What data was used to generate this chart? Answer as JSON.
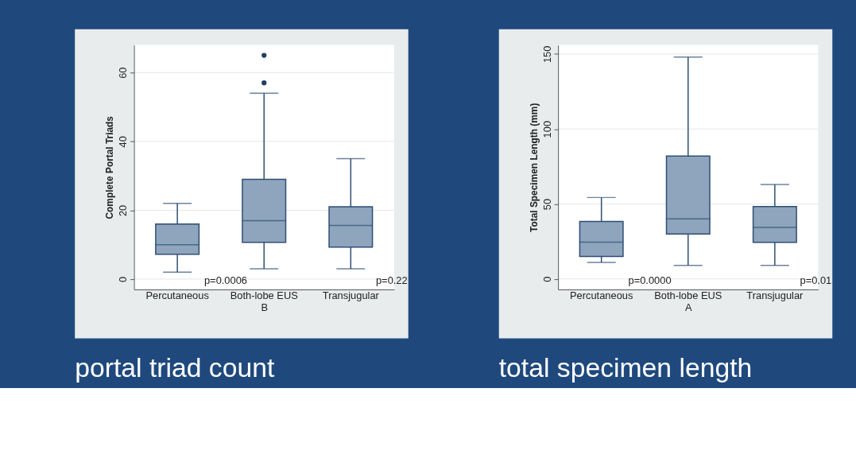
{
  "chart_data": [
    {
      "type": "box",
      "title": "portal triad count",
      "xlabel": "B",
      "ylabel": "Complete Portal Triads",
      "categories": [
        "Percutaneous",
        "Both-lobe EUS",
        "Transjugular"
      ],
      "ylim": [
        -3,
        68
      ],
      "yticks": [
        0,
        20,
        40,
        60
      ],
      "grid": "y",
      "annotations": [
        "p=0.0006",
        "p=0.22"
      ],
      "series": [
        {
          "color": "#8ea5bd",
          "boxes": [
            {
              "low": 2,
              "q1": 7.2,
              "median": 10,
              "q3": 16,
              "high": 22
            },
            {
              "low": 3,
              "q1": 10.7,
              "median": 17,
              "q3": 29,
              "high": 54,
              "outliers": [
                57,
                65
              ]
            },
            {
              "low": 3,
              "q1": 9.3,
              "median": 15.6,
              "q3": 21,
              "high": 35
            }
          ]
        }
      ]
    },
    {
      "type": "box",
      "title": "total specimen length",
      "xlabel": "A",
      "ylabel": "Total Specimen Length (mm)",
      "categories": [
        "Percutaneous",
        "Both-lobe EUS",
        "Transjugular"
      ],
      "ylim": [
        -7,
        156
      ],
      "yticks": [
        0,
        50,
        100,
        150
      ],
      "grid": "y",
      "annotations": [
        "p=0.0000",
        "p=0.01"
      ],
      "series": [
        {
          "color": "#8ea5bd",
          "boxes": [
            {
              "low": 11,
              "q1": 15,
              "median": 24.6,
              "q3": 38.3,
              "high": 54.3
            },
            {
              "low": 9,
              "q1": 30,
              "median": 40,
              "q3": 82,
              "high": 148
            },
            {
              "low": 9,
              "q1": 24.4,
              "median": 34.3,
              "q3": 48.3,
              "high": 63
            }
          ]
        }
      ]
    }
  ]
}
